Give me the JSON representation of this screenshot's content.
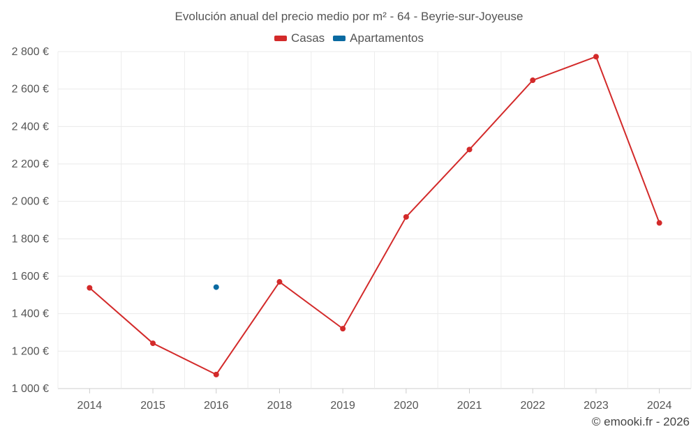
{
  "chart_data": {
    "type": "line",
    "title": "Evolución anual del precio medio por m² - 64 - Beyrie-sur-Joyeuse",
    "categories": [
      "2014",
      "2015",
      "2016",
      "2018",
      "2019",
      "2020",
      "2021",
      "2022",
      "2023",
      "2024"
    ],
    "series": [
      {
        "name": "Casas",
        "color": "#d32a2a",
        "values": [
          1538,
          1242,
          1075,
          1570,
          1320,
          1917,
          2277,
          2647,
          2773,
          1885
        ]
      },
      {
        "name": "Apartamentos",
        "color": "#0a6aa1",
        "values": [
          null,
          null,
          1542,
          null,
          null,
          null,
          null,
          null,
          null,
          null
        ]
      }
    ],
    "ylim": [
      1000,
      2800
    ],
    "yticks": [
      1000,
      1200,
      1400,
      1600,
      1800,
      2000,
      2200,
      2400,
      2600,
      2800
    ],
    "ytick_labels": [
      "1 000 €",
      "1 200 €",
      "1 400 €",
      "1 600 €",
      "1 800 €",
      "2 000 €",
      "2 200 €",
      "2 400 €",
      "2 600 €",
      "2 800 €"
    ],
    "xlabel": "",
    "ylabel": "",
    "grid": true,
    "legend_position": "top-center"
  },
  "legend": {
    "casas_label": "Casas",
    "apartamentos_label": "Apartamentos"
  },
  "credit": "© emooki.fr - 2026"
}
